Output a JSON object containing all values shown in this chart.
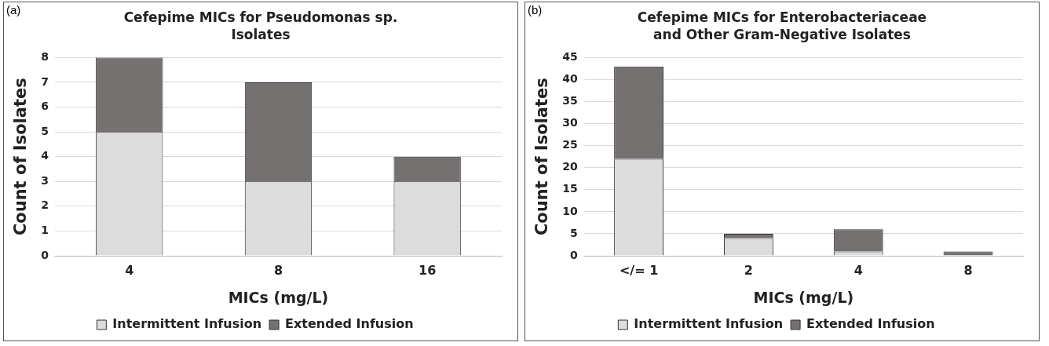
{
  "chart_data": [
    {
      "type": "bar",
      "title": "Cefepime MICs for Pseudomonas sp. Isolates",
      "annotations": [
        "(a)"
      ],
      "xlabel": "MICs (mg/L)",
      "ylabel": "Count of Isolates",
      "categories": [
        "4",
        "8",
        "16"
      ],
      "stacked": true,
      "series": [
        {
          "name": "Intermittent Infusion",
          "color": "#dcdcdc",
          "values": [
            5,
            3,
            3
          ]
        },
        {
          "name": "Extended Infusion",
          "color": "#767171",
          "values": [
            3,
            4,
            1
          ]
        }
      ],
      "ylim": [
        0,
        8
      ],
      "yticks": [
        0,
        1,
        2,
        3,
        4,
        5,
        6,
        7,
        8
      ],
      "grid": "y",
      "legend": "bottom"
    },
    {
      "type": "bar",
      "title": "Cefepime MICs for Enterobacteriaceae and Other Gram-Negative Isolates",
      "annotations": [
        "(b)"
      ],
      "xlabel": "MICs (mg/L)",
      "ylabel": "Count of Isolates",
      "categories": [
        "</= 1",
        "2",
        "4",
        "8"
      ],
      "stacked": true,
      "series": [
        {
          "name": "Intermittent Infusion",
          "color": "#dcdcdc",
          "values": [
            22,
            4,
            1,
            0
          ]
        },
        {
          "name": "Extended Infusion",
          "color": "#767171",
          "values": [
            21,
            1,
            5,
            1
          ]
        }
      ],
      "ylim": [
        0,
        45
      ],
      "yticks": [
        0,
        5,
        10,
        15,
        20,
        25,
        30,
        35,
        40,
        45
      ],
      "grid": "y",
      "legend": "bottom"
    }
  ]
}
